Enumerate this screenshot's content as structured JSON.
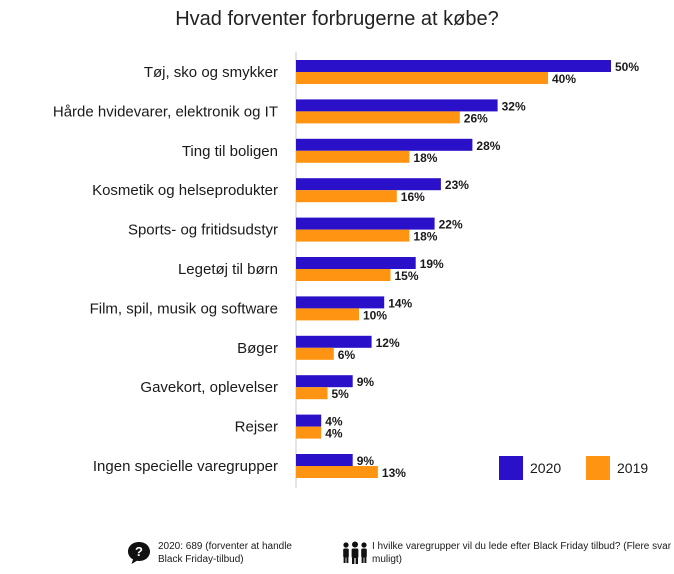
{
  "chart_data": {
    "type": "bar",
    "orientation": "horizontal",
    "title": "Hvad forventer forbrugerne at købe?",
    "categories": [
      "Tøj, sko og smykker",
      "Hårde hvidevarer, elektronik og IT",
      "Ting til boligen",
      "Kosmetik og helseprodukter",
      "Sports- og fritidsudstyr",
      "Legetøj til børn",
      "Film, spil, musik og software",
      "Bøger",
      "Gavekort, oplevelser",
      "Rejser",
      "Ingen specielle varegrupper"
    ],
    "series": [
      {
        "name": "2020",
        "color": "#2a10c8",
        "values": [
          50,
          32,
          28,
          23,
          22,
          19,
          14,
          12,
          9,
          4,
          9
        ],
        "labels": [
          "50%",
          "32%",
          "28%",
          "23%",
          "22%",
          "19%",
          "14%",
          "12%",
          "9%",
          "4%",
          "9%"
        ]
      },
      {
        "name": "2019",
        "color": "#ff9412",
        "values": [
          40,
          26,
          18,
          16,
          18,
          15,
          10,
          6,
          5,
          4,
          13
        ],
        "labels": [
          "40%",
          "26%",
          "18%",
          "16%",
          "18%",
          "15%",
          "10%",
          "6%",
          "5%",
          "4%",
          "13%"
        ]
      }
    ],
    "xlim": [
      0,
      50
    ],
    "grid": false,
    "legend": "bottom-right"
  },
  "footer": {
    "left_text": "2020: 689 (forventer at handle Black Friday-tilbud)",
    "right_text": "I hvilke varegrupper vil du lede efter Black Friday tilbud? (Flere svar muligt)",
    "left_icon": "question-bubble-icon",
    "right_icon": "people-group-icon"
  }
}
